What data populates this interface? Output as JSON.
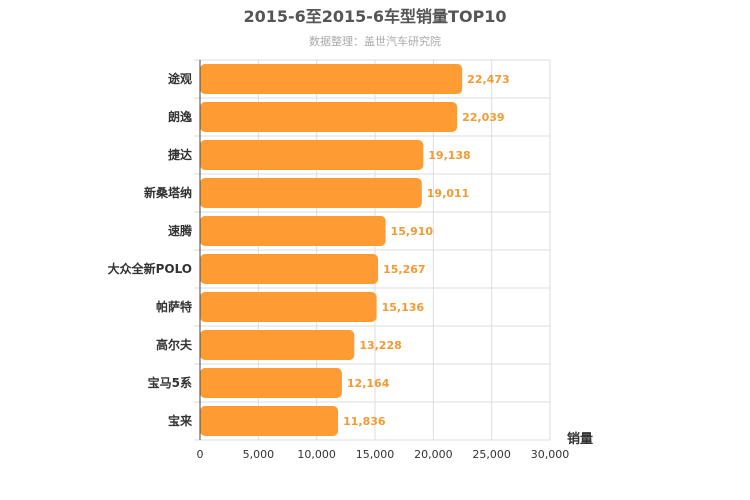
{
  "chart_data": {
    "type": "bar",
    "orientation": "horizontal",
    "title": "2015-6至2015-6车型销量TOP10",
    "subtitle": "数据整理：盖世汽车研究院",
    "categories": [
      "途观",
      "朗逸",
      "捷达",
      "新桑塔纳",
      "速腾",
      "大众全新POLO",
      "帕萨特",
      "高尔夫",
      "宝马5系",
      "宝来"
    ],
    "values": [
      22473,
      22039,
      19138,
      19011,
      15910,
      15267,
      15136,
      13228,
      12164,
      11836
    ],
    "value_labels": [
      "22,473",
      "22,039",
      "19,138",
      "19,011",
      "15,910",
      "15,267",
      "15,136",
      "13,228",
      "12,164",
      "11,836"
    ],
    "xlabel": "销量",
    "ylabel": "",
    "xlim": [
      0,
      30000
    ],
    "xticks": [
      0,
      5000,
      10000,
      15000,
      20000,
      25000,
      30000
    ],
    "xtick_labels": [
      "0",
      "5,000",
      "10,000",
      "15,000",
      "20,000",
      "25,000",
      "30,000"
    ],
    "grid": true,
    "legend": "none",
    "bar_color": "#ff9b33",
    "label_color": "#f39a34"
  }
}
